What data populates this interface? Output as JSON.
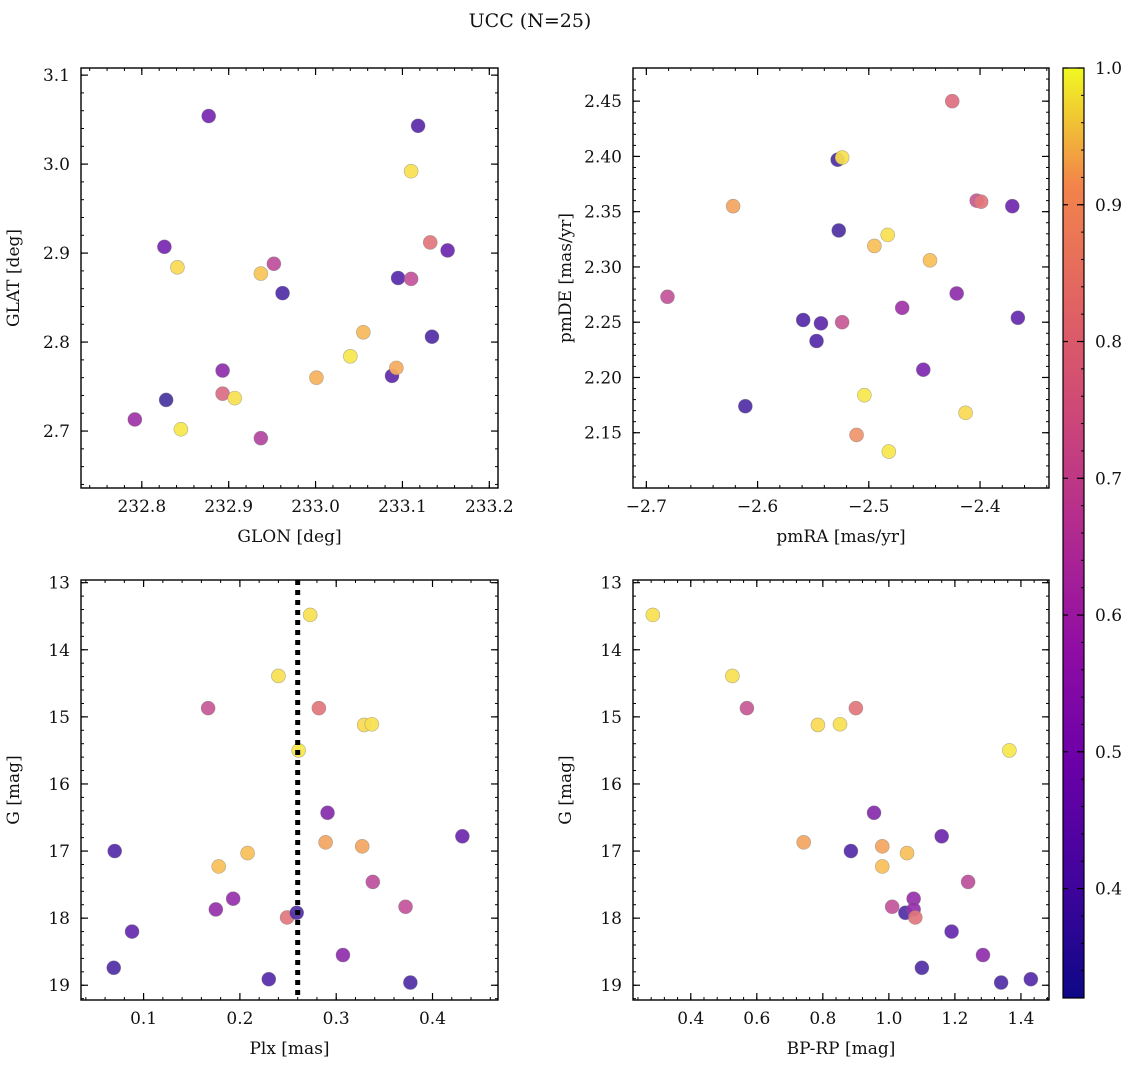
{
  "figure": {
    "title": "UCC (N=25)",
    "colormap": "plasma",
    "colorbar": {
      "range": [
        0.32,
        1.0
      ],
      "ticks": [
        "0.4",
        "0.5",
        "0.6",
        "0.7",
        "0.8",
        "0.9",
        "1.0"
      ]
    }
  },
  "chart_data": [
    {
      "type": "scatter",
      "xlabel": "GLON [deg]",
      "ylabel": "GLAT [deg]",
      "xlim": [
        232.73,
        233.21
      ],
      "ylim": [
        2.636,
        3.108
      ],
      "yinvert": false,
      "xticks": [
        "232.8",
        "232.9",
        "233.0",
        "233.1",
        "233.2"
      ],
      "yticks": [
        "2.7",
        "2.8",
        "2.9",
        "3.0",
        "3.1"
      ],
      "points": [
        {
          "x": 232.792,
          "y": 2.713,
          "c": 0.62
        },
        {
          "x": 232.826,
          "y": 2.907,
          "c": 0.52
        },
        {
          "x": 232.828,
          "y": 2.735,
          "c": 0.35
        },
        {
          "x": 232.841,
          "y": 2.884,
          "c": 0.96
        },
        {
          "x": 232.845,
          "y": 2.702,
          "c": 0.98
        },
        {
          "x": 232.877,
          "y": 3.054,
          "c": 0.52
        },
        {
          "x": 232.893,
          "y": 2.768,
          "c": 0.58
        },
        {
          "x": 232.893,
          "y": 2.742,
          "c": 0.75
        },
        {
          "x": 232.907,
          "y": 2.737,
          "c": 0.97
        },
        {
          "x": 232.937,
          "y": 2.877,
          "c": 0.93
        },
        {
          "x": 232.937,
          "y": 2.692,
          "c": 0.66
        },
        {
          "x": 232.952,
          "y": 2.888,
          "c": 0.68
        },
        {
          "x": 232.962,
          "y": 2.855,
          "c": 0.4
        },
        {
          "x": 233.001,
          "y": 2.76,
          "c": 0.9
        },
        {
          "x": 233.04,
          "y": 2.784,
          "c": 0.98
        },
        {
          "x": 233.055,
          "y": 2.811,
          "c": 0.91
        },
        {
          "x": 233.088,
          "y": 2.762,
          "c": 0.45
        },
        {
          "x": 233.093,
          "y": 2.771,
          "c": 0.89
        },
        {
          "x": 233.095,
          "y": 2.872,
          "c": 0.43
        },
        {
          "x": 233.11,
          "y": 2.992,
          "c": 0.97
        },
        {
          "x": 233.11,
          "y": 2.871,
          "c": 0.69
        },
        {
          "x": 233.118,
          "y": 3.043,
          "c": 0.44
        },
        {
          "x": 233.132,
          "y": 2.912,
          "c": 0.78
        },
        {
          "x": 233.134,
          "y": 2.806,
          "c": 0.4
        },
        {
          "x": 233.152,
          "y": 2.903,
          "c": 0.49
        }
      ]
    },
    {
      "type": "scatter",
      "xlabel": "pmRA [mas/yr]",
      "ylabel": "pmDE [mas/yr]",
      "xlim": [
        -2.712,
        -2.338
      ],
      "ylim": [
        2.1,
        2.48
      ],
      "yinvert": false,
      "xticks": [
        "−2.7",
        "−2.6",
        "−2.5",
        "−2.4"
      ],
      "yticks": [
        "2.15",
        "2.20",
        "2.25",
        "2.30",
        "2.35",
        "2.40",
        "2.45"
      ],
      "points": [
        {
          "x": -2.681,
          "y": 2.273,
          "c": 0.69
        },
        {
          "x": -2.622,
          "y": 2.355,
          "c": 0.88
        },
        {
          "x": -2.611,
          "y": 2.174,
          "c": 0.4
        },
        {
          "x": -2.559,
          "y": 2.252,
          "c": 0.42
        },
        {
          "x": -2.547,
          "y": 2.233,
          "c": 0.42
        },
        {
          "x": -2.543,
          "y": 2.249,
          "c": 0.45
        },
        {
          "x": -2.528,
          "y": 2.397,
          "c": 0.38
        },
        {
          "x": -2.527,
          "y": 2.333,
          "c": 0.38
        },
        {
          "x": -2.524,
          "y": 2.399,
          "c": 0.97
        },
        {
          "x": -2.524,
          "y": 2.25,
          "c": 0.7
        },
        {
          "x": -2.511,
          "y": 2.148,
          "c": 0.85
        },
        {
          "x": -2.504,
          "y": 2.184,
          "c": 0.98
        },
        {
          "x": -2.495,
          "y": 2.319,
          "c": 0.92
        },
        {
          "x": -2.483,
          "y": 2.329,
          "c": 0.97
        },
        {
          "x": -2.482,
          "y": 2.133,
          "c": 0.98
        },
        {
          "x": -2.47,
          "y": 2.263,
          "c": 0.62
        },
        {
          "x": -2.451,
          "y": 2.207,
          "c": 0.54
        },
        {
          "x": -2.445,
          "y": 2.306,
          "c": 0.92
        },
        {
          "x": -2.425,
          "y": 2.45,
          "c": 0.76
        },
        {
          "x": -2.421,
          "y": 2.276,
          "c": 0.58
        },
        {
          "x": -2.413,
          "y": 2.168,
          "c": 0.96
        },
        {
          "x": -2.403,
          "y": 2.36,
          "c": 0.7
        },
        {
          "x": -2.399,
          "y": 2.359,
          "c": 0.78
        },
        {
          "x": -2.371,
          "y": 2.355,
          "c": 0.5
        },
        {
          "x": -2.366,
          "y": 2.254,
          "c": 0.47
        }
      ]
    },
    {
      "type": "scatter",
      "xlabel": "Plx [mas]",
      "ylabel": "G [mag]",
      "xlim": [
        0.035,
        0.468
      ],
      "ylim": [
        19.22,
        12.96
      ],
      "yinvert": true,
      "xticks": [
        "0.1",
        "0.2",
        "0.3",
        "0.4"
      ],
      "yticks": [
        "13",
        "14",
        "15",
        "16",
        "17",
        "18",
        "19"
      ],
      "vline": {
        "x": 0.26,
        "style": "dotted",
        "color": "#000000"
      },
      "points": [
        {
          "x": 0.07,
          "y": 17.0,
          "c": 0.42
        },
        {
          "x": 0.069,
          "y": 18.74,
          "c": 0.4
        },
        {
          "x": 0.088,
          "y": 18.2,
          "c": 0.47
        },
        {
          "x": 0.167,
          "y": 14.87,
          "c": 0.7
        },
        {
          "x": 0.175,
          "y": 17.87,
          "c": 0.6
        },
        {
          "x": 0.178,
          "y": 17.23,
          "c": 0.92
        },
        {
          "x": 0.193,
          "y": 17.71,
          "c": 0.6
        },
        {
          "x": 0.208,
          "y": 17.03,
          "c": 0.92
        },
        {
          "x": 0.23,
          "y": 18.91,
          "c": 0.42
        },
        {
          "x": 0.24,
          "y": 14.39,
          "c": 0.97
        },
        {
          "x": 0.249,
          "y": 17.99,
          "c": 0.78
        },
        {
          "x": 0.261,
          "y": 15.5,
          "c": 0.98
        },
        {
          "x": 0.259,
          "y": 17.92,
          "c": 0.4
        },
        {
          "x": 0.273,
          "y": 13.48,
          "c": 0.97
        },
        {
          "x": 0.282,
          "y": 14.87,
          "c": 0.78
        },
        {
          "x": 0.291,
          "y": 16.43,
          "c": 0.56
        },
        {
          "x": 0.289,
          "y": 16.87,
          "c": 0.88
        },
        {
          "x": 0.307,
          "y": 18.55,
          "c": 0.58
        },
        {
          "x": 0.327,
          "y": 16.93,
          "c": 0.88
        },
        {
          "x": 0.329,
          "y": 15.12,
          "c": 0.96
        },
        {
          "x": 0.337,
          "y": 15.11,
          "c": 0.97
        },
        {
          "x": 0.338,
          "y": 17.46,
          "c": 0.68
        },
        {
          "x": 0.372,
          "y": 17.83,
          "c": 0.69
        },
        {
          "x": 0.377,
          "y": 18.96,
          "c": 0.4
        },
        {
          "x": 0.431,
          "y": 16.78,
          "c": 0.49
        }
      ]
    },
    {
      "type": "scatter",
      "xlabel": "BP-RP [mag]",
      "ylabel": "G [mag]",
      "xlim": [
        0.225,
        1.485
      ],
      "ylim": [
        19.22,
        12.96
      ],
      "yinvert": true,
      "xticks": [
        "0.4",
        "0.6",
        "0.8",
        "1.0",
        "1.2",
        "1.4"
      ],
      "yticks": [
        "13",
        "14",
        "15",
        "16",
        "17",
        "18",
        "19"
      ],
      "points": [
        {
          "x": 0.285,
          "y": 13.48,
          "c": 0.97
        },
        {
          "x": 0.526,
          "y": 14.39,
          "c": 0.97
        },
        {
          "x": 0.57,
          "y": 14.87,
          "c": 0.7
        },
        {
          "x": 0.742,
          "y": 16.87,
          "c": 0.88
        },
        {
          "x": 0.785,
          "y": 15.12,
          "c": 0.96
        },
        {
          "x": 0.852,
          "y": 15.11,
          "c": 0.97
        },
        {
          "x": 0.885,
          "y": 17.0,
          "c": 0.42
        },
        {
          "x": 0.9,
          "y": 14.87,
          "c": 0.78
        },
        {
          "x": 0.955,
          "y": 16.43,
          "c": 0.56
        },
        {
          "x": 0.98,
          "y": 16.93,
          "c": 0.88
        },
        {
          "x": 0.98,
          "y": 17.23,
          "c": 0.92
        },
        {
          "x": 1.01,
          "y": 17.83,
          "c": 0.69
        },
        {
          "x": 1.055,
          "y": 17.03,
          "c": 0.92
        },
        {
          "x": 1.05,
          "y": 17.92,
          "c": 0.4
        },
        {
          "x": 1.075,
          "y": 17.71,
          "c": 0.6
        },
        {
          "x": 1.075,
          "y": 17.87,
          "c": 0.6
        },
        {
          "x": 1.08,
          "y": 17.99,
          "c": 0.78
        },
        {
          "x": 1.1,
          "y": 18.74,
          "c": 0.4
        },
        {
          "x": 1.16,
          "y": 16.78,
          "c": 0.49
        },
        {
          "x": 1.19,
          "y": 18.2,
          "c": 0.47
        },
        {
          "x": 1.24,
          "y": 17.46,
          "c": 0.68
        },
        {
          "x": 1.285,
          "y": 18.55,
          "c": 0.58
        },
        {
          "x": 1.34,
          "y": 18.96,
          "c": 0.4
        },
        {
          "x": 1.365,
          "y": 15.5,
          "c": 0.98
        },
        {
          "x": 1.43,
          "y": 18.91,
          "c": 0.42
        }
      ]
    }
  ]
}
